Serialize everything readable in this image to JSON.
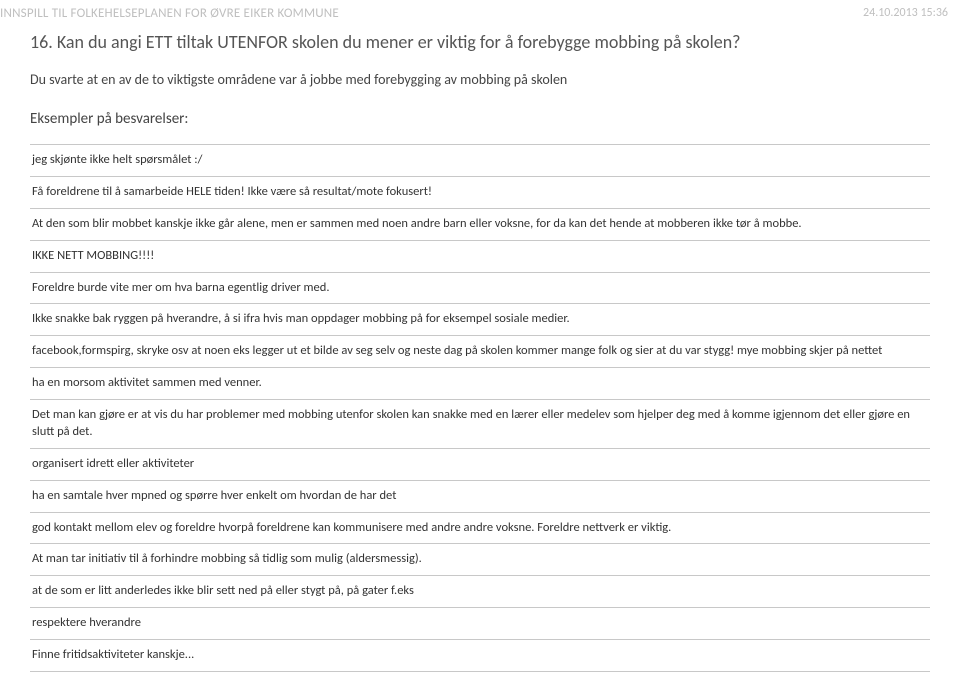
{
  "header": {
    "title": "INNSPILL TIL FOLKEHELSEPLANEN FOR ØVRE EIKER KOMMUNE",
    "date": "24.10.2013 15:36"
  },
  "question": {
    "number": "16.",
    "text": "Kan du angi ETT tiltak UTENFOR skolen du mener er viktig for å forebygge mobbing på skolen?"
  },
  "subtext": "Du svarte at en av de to viktigste områdene var å jobbe med forebygging av mobbing på skolen",
  "examples_label": "Eksempler på besvarelser:",
  "responses": [
    "jeg skjønte ikke helt spørsmålet :/",
    "Få foreldrene til å samarbeide HELE tiden! Ikke være så resultat/mote fokusert!",
    "At den som blir mobbet kanskje ikke går alene, men er sammen med noen andre barn eller voksne, for da kan det hende at mobberen ikke tør å mobbe.",
    "IKKE NETT MOBBING!!!!",
    "Foreldre burde vite mer om hva barna egentlig driver med.",
    "Ikke snakke bak ryggen på hverandre, å si ifra hvis man oppdager mobbing på for eksempel sosiale medier.",
    "facebook,formspirg, skryke osv at noen eks legger ut et bilde av seg selv og neste dag på skolen kommer mange folk og sier at du var stygg! mye mobbing skjer på nettet",
    "ha en morsom aktivitet sammen med venner.",
    "Det man kan gjøre er at vis du har problemer med mobbing utenfor skolen kan snakke med en lærer eller medelev som hjelper deg med å komme igjennom det eller gjøre en slutt på det.",
    "organisert idrett eller aktiviteter",
    "ha en samtale hver mpned og spørre hver enkelt om hvordan de har det",
    "god kontakt mellom elev og foreldre hvorpå foreldrene kan kommunisere med andre andre voksne. Foreldre nettverk er viktig.",
    "At man tar initiativ til å forhindre mobbing så tidlig som mulig (aldersmessig).",
    "at de som er litt anderledes ikke blir sett ned på eller stygt på, på gater f.eks",
    "respektere hverandre",
    "Finne fritidsaktiviteter kanskje..."
  ]
}
